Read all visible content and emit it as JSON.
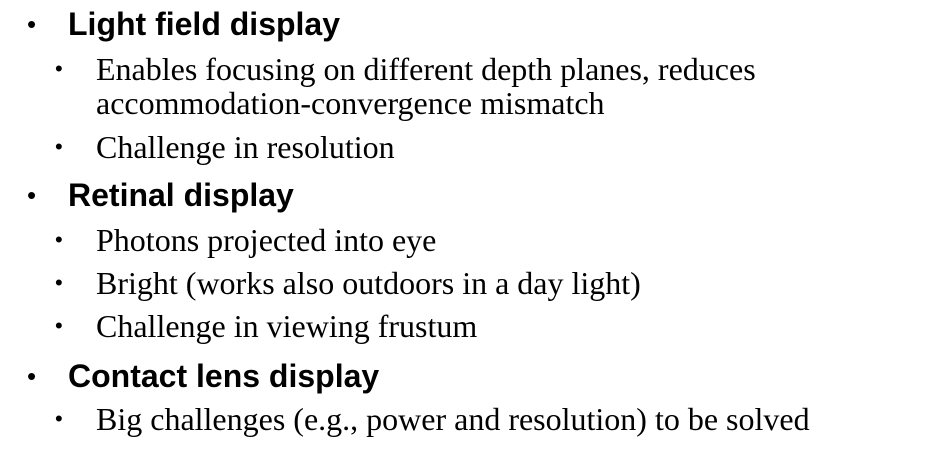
{
  "sections": [
    {
      "heading": "Light field display",
      "items": [
        "Enables focusing on different depth planes, reduces",
        "accommodation-convergence mismatch",
        "Challenge in resolution"
      ]
    },
    {
      "heading": "Retinal display",
      "items": [
        "Photons projected into eye",
        "Bright (works also outdoors in a day light)",
        "Challenge in viewing frustum"
      ]
    },
    {
      "heading": "Contact lens display",
      "items": [
        "Big challenges  (e.g., power and resolution) to be solved"
      ]
    }
  ],
  "bullet_char": "•"
}
